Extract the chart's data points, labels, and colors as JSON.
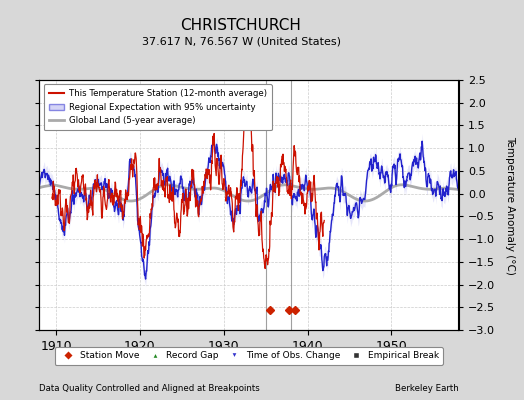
{
  "title": "CHRISTCHURCH",
  "subtitle": "37.617 N, 76.567 W (United States)",
  "footer_left": "Data Quality Controlled and Aligned at Breakpoints",
  "footer_right": "Berkeley Earth",
  "xlabel_ticks": [
    1910,
    1920,
    1930,
    1940,
    1950
  ],
  "ylabel": "Temperature Anomaly (°C)",
  "ylim": [
    -3.0,
    2.5
  ],
  "yticks": [
    -3,
    -2.5,
    -2,
    -1.5,
    -1,
    -0.5,
    0,
    0.5,
    1,
    1.5,
    2,
    2.5
  ],
  "xlim": [
    1908,
    1958
  ],
  "bg_color": "#d8d8d8",
  "plot_bg_color": "#ffffff",
  "station_move_years": [
    1935.5,
    1937.8,
    1938.5
  ],
  "vline_years": [
    1935.0,
    1938.0
  ],
  "legend_labels": [
    "This Temperature Station (12-month average)",
    "Regional Expectation with 95% uncertainty",
    "Global Land (5-year average)"
  ],
  "marker_legend": [
    "Station Move",
    "Record Gap",
    "Time of Obs. Change",
    "Empirical Break"
  ],
  "marker_colors_hex": [
    "#cc2200",
    "#228822",
    "#3333cc",
    "#333333"
  ]
}
